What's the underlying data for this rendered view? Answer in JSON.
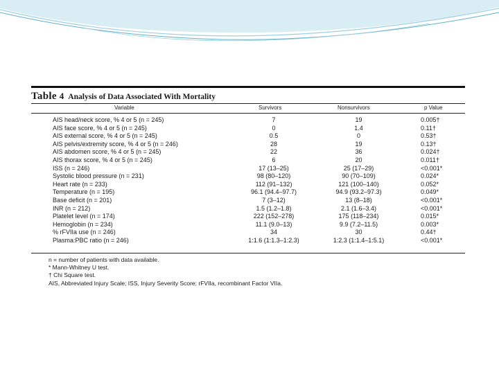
{
  "table": {
    "label": "Table",
    "number": "4",
    "caption": "Analysis of Data Associated With Mortality",
    "headers": [
      "Variable",
      "Survivors",
      "Nonsurvivors",
      "p Value"
    ],
    "rows": [
      [
        "AIS head/neck score, % 4 or 5 (n = 245)",
        "7",
        "19",
        "0.005†"
      ],
      [
        "AIS face score, % 4 or 5 (n = 245)",
        "0",
        "1.4",
        "0.11†"
      ],
      [
        "AIS external score, % 4 or 5 (n = 245)",
        "0.5",
        "0",
        "0.53†"
      ],
      [
        "AIS pelvis/extremity score, % 4 or 5 (n = 246)",
        "28",
        "19",
        "0.13†"
      ],
      [
        "AIS abdomen score, % 4 or 5 (n = 245)",
        "22",
        "36",
        "0.024†"
      ],
      [
        "AIS thorax score, % 4 or 5 (n = 245)",
        "6",
        "20",
        "0.011†"
      ],
      [
        "ISS (n = 246)",
        "17 (13–25)",
        "25 (17–29)",
        "<0.001*"
      ],
      [
        "Systolic blood pressure (n = 231)",
        "98 (80–120)",
        "90 (70–109)",
        "0.024*"
      ],
      [
        "Heart rate (n = 233)",
        "112 (91–132)",
        "121 (100–140)",
        "0.052*"
      ],
      [
        "Temperature (n = 195)",
        "96.1 (94.4–97.7)",
        "94.9 (93.2–97.3)",
        "0.049*"
      ],
      [
        "Base deficit (n = 201)",
        "7 (3–12)",
        "13 (8–18)",
        "<0.001*"
      ],
      [
        "INR (n = 212)",
        "1.5 (1.2–1.8)",
        "2.1 (1.6–3.4)",
        "<0.001*"
      ],
      [
        "Platelet level (n = 174)",
        "222 (152–278)",
        "175 (118–234)",
        "0.015*"
      ],
      [
        "Hemoglobin (n = 234)",
        "11.1 (9.0–13)",
        "9.9 (7.2–11.5)",
        "0.003*"
      ],
      [
        "% rFVIIa use (n = 246)",
        "34",
        "30",
        "0.44†"
      ],
      [
        "Plasma:PBC ratio (n = 246)",
        "1:1.6 (1:1.3–1:2.3)",
        "1:2.3 (1:1.4–1:5.1)",
        "<0.001*"
      ]
    ],
    "notes": [
      "n = number of patients with data available.",
      "* Mann-Whitney U test.",
      "† Chi Square test.",
      "AIS, Abbreviated Injury Scale; ISS, Injury Severity Score; rFVIIa, recombinant Factor VIIa."
    ]
  },
  "colors": {
    "decor_light": "#d9eef4",
    "decor_mid": "#9ccfdf",
    "decor_dark": "#5fb0c8"
  }
}
